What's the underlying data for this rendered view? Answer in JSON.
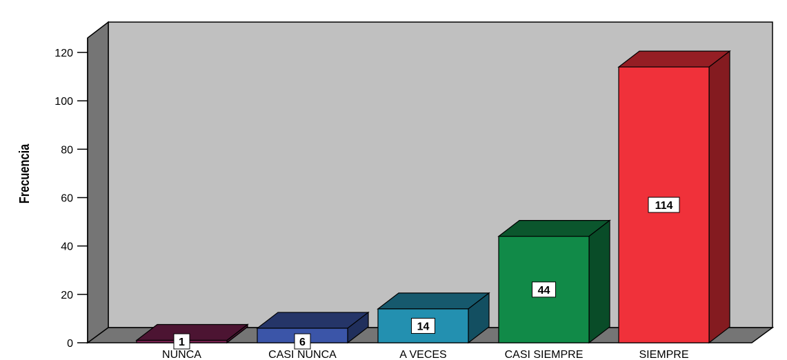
{
  "chart_data": {
    "type": "bar",
    "ylabel": "Frecuencia",
    "xlabel": "",
    "categories": [
      "NUNCA",
      "CASI NUNCA",
      "A VECES",
      "CASI SIEMPRE",
      "SIEMPRE"
    ],
    "values": [
      1,
      6,
      14,
      44,
      114
    ],
    "data_labels": [
      "1",
      "6",
      "14",
      "44",
      "114"
    ],
    "colors": [
      "#7a2150",
      "#3b55a8",
      "#2390b0",
      "#118a48",
      "#f0313a"
    ],
    "yticks": [
      0,
      20,
      40,
      60,
      80,
      100,
      120
    ],
    "ylim": [
      0,
      130
    ],
    "grid": false,
    "style": "3d",
    "wall_color": "#c0c0c0"
  }
}
